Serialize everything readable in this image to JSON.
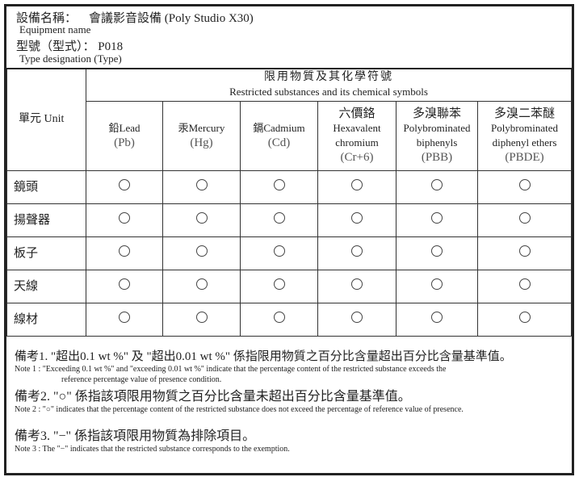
{
  "header": {
    "equipment_label_zh": "設備名稱：",
    "equipment_value": "會議影音設備 (Poly Studio X30)",
    "equipment_label_en": "Equipment name",
    "type_label_zh": "型號（型式）：",
    "type_value": "P018",
    "type_label_en": "Type designation (Type)"
  },
  "table": {
    "unit_header": "單元 Unit",
    "group_header_zh": "限用物質及其化學符號",
    "group_header_en": "Restricted substances and its chemical symbols",
    "columns": [
      {
        "zh": "",
        "name": "鉛Lead",
        "symbol": "(Pb)"
      },
      {
        "zh": "",
        "name": "汞Mercury",
        "symbol": "(Hg)"
      },
      {
        "zh": "",
        "name": "鎘Cadmium",
        "symbol": "(Cd)"
      },
      {
        "zh": "六價鉻",
        "name": "Hexavalent chromium",
        "symbol": "(Cr+6)"
      },
      {
        "zh": "多溴聯苯",
        "name": "Polybrominated biphenyls",
        "symbol": "(PBB)"
      },
      {
        "zh": "多溴二苯醚",
        "name": "Polybrominated diphenyl ethers",
        "symbol": "(PBDE)"
      }
    ],
    "rows": [
      {
        "unit": "鏡頭",
        "values": [
          "○",
          "○",
          "○",
          "○",
          "○",
          "○"
        ]
      },
      {
        "unit": "揚聲器",
        "values": [
          "○",
          "○",
          "○",
          "○",
          "○",
          "○"
        ]
      },
      {
        "unit": "板子",
        "values": [
          "○",
          "○",
          "○",
          "○",
          "○",
          "○"
        ]
      },
      {
        "unit": "天線",
        "values": [
          "○",
          "○",
          "○",
          "○",
          "○",
          "○"
        ]
      },
      {
        "unit": "線材",
        "values": [
          "○",
          "○",
          "○",
          "○",
          "○",
          "○"
        ]
      }
    ]
  },
  "notes": [
    {
      "zh": "備考1. \"超出0.1 wt %\" 及 \"超出0.01 wt %\" 係指限用物質之百分比含量超出百分比含量基準值。",
      "en": "Note 1 : \"Exceeding 0.1 wt %\" and \"exceeding 0.01 wt %\" indicate that the percentage content of the restricted substance exceeds the",
      "en2": "reference percentage value of presence condition."
    },
    {
      "zh": "備考2. \"○\" 係指該項限用物質之百分比含量未超出百分比含量基準值。",
      "en": "Note 2 : \"○\" indicates that the percentage content of the restricted substance does not exceed the percentage of reference value of presence."
    },
    {
      "zh": "備考3. \"−\" 係指該項限用物質為排除項目。",
      "en": "Note 3 : The \"−\" indicates that the restricted substance corresponds to the exemption."
    }
  ]
}
